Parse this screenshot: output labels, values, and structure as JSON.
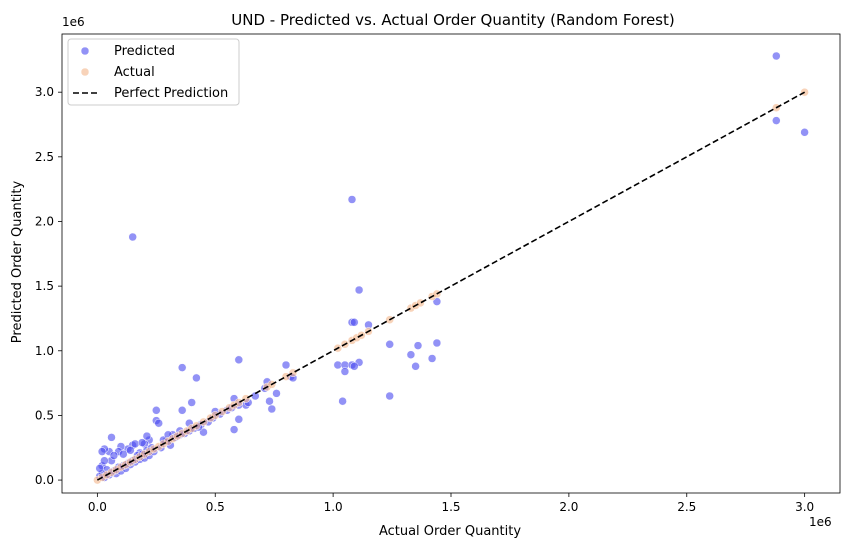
{
  "chart_data": {
    "type": "scatter",
    "title": "UND - Predicted vs. Actual Order Quantity (Random Forest)",
    "xlabel": "Actual Order Quantity",
    "ylabel": "Predicted Order Quantity",
    "x_offset_label": "1e6",
    "y_offset_label": "1e6",
    "xlim": [
      -0.15,
      3.15
    ],
    "ylim": [
      -0.1,
      3.45
    ],
    "xticks": [
      {
        "value": 0.0,
        "label": "0.0"
      },
      {
        "value": 0.5,
        "label": "0.5"
      },
      {
        "value": 1.0,
        "label": "1.0"
      },
      {
        "value": 1.5,
        "label": "1.5"
      },
      {
        "value": 2.0,
        "label": "2.0"
      },
      {
        "value": 2.5,
        "label": "2.5"
      },
      {
        "value": 3.0,
        "label": "3.0"
      }
    ],
    "yticks": [
      {
        "value": 0.0,
        "label": "0.0"
      },
      {
        "value": 0.5,
        "label": "0.5"
      },
      {
        "value": 1.0,
        "label": "1.0"
      },
      {
        "value": 1.5,
        "label": "1.5"
      },
      {
        "value": 2.0,
        "label": "2.0"
      },
      {
        "value": 2.5,
        "label": "2.5"
      },
      {
        "value": 3.0,
        "label": "3.0"
      }
    ],
    "grid": false,
    "legend_position": "top-left",
    "series": [
      {
        "name": "Predicted",
        "kind": "scatter",
        "color": "#4a4af0",
        "points": [
          [
            0.15,
            1.88
          ],
          [
            1.08,
            2.17
          ],
          [
            2.88,
            3.28
          ],
          [
            2.88,
            2.78
          ],
          [
            3.0,
            2.69
          ],
          [
            1.11,
            1.47
          ],
          [
            1.08,
            1.22
          ],
          [
            1.09,
            1.22
          ],
          [
            1.15,
            1.2
          ],
          [
            1.44,
            1.38
          ],
          [
            1.44,
            1.06
          ],
          [
            1.33,
            0.97
          ],
          [
            1.36,
            1.04
          ],
          [
            1.35,
            0.88
          ],
          [
            1.42,
            0.94
          ],
          [
            1.24,
            1.05
          ],
          [
            1.24,
            0.65
          ],
          [
            1.04,
            0.61
          ],
          [
            1.11,
            0.91
          ],
          [
            1.02,
            0.89
          ],
          [
            1.05,
            0.89
          ],
          [
            1.08,
            0.89
          ],
          [
            1.09,
            0.88
          ],
          [
            1.05,
            0.84
          ],
          [
            0.36,
            0.87
          ],
          [
            0.6,
            0.93
          ],
          [
            0.42,
            0.79
          ],
          [
            0.8,
            0.89
          ],
          [
            0.82,
            0.8
          ],
          [
            0.83,
            0.79
          ],
          [
            0.72,
            0.76
          ],
          [
            0.71,
            0.71
          ],
          [
            0.73,
            0.61
          ],
          [
            0.74,
            0.55
          ],
          [
            0.76,
            0.67
          ],
          [
            0.63,
            0.58
          ],
          [
            0.58,
            0.63
          ],
          [
            0.58,
            0.39
          ],
          [
            0.6,
            0.47
          ],
          [
            0.5,
            0.53
          ],
          [
            0.45,
            0.37
          ],
          [
            0.44,
            0.43
          ],
          [
            0.4,
            0.6
          ],
          [
            0.39,
            0.44
          ],
          [
            0.36,
            0.54
          ],
          [
            0.35,
            0.38
          ],
          [
            0.32,
            0.35
          ],
          [
            0.3,
            0.3
          ],
          [
            0.25,
            0.54
          ],
          [
            0.25,
            0.46
          ],
          [
            0.26,
            0.44
          ],
          [
            0.22,
            0.31
          ],
          [
            0.2,
            0.28
          ],
          [
            0.18,
            0.21
          ],
          [
            0.15,
            0.27
          ],
          [
            0.13,
            0.24
          ],
          [
            0.1,
            0.26
          ],
          [
            0.09,
            0.22
          ],
          [
            0.06,
            0.33
          ],
          [
            0.05,
            0.22
          ],
          [
            0.03,
            0.24
          ],
          [
            0.02,
            0.22
          ],
          [
            0.02,
            0.11
          ],
          [
            0.04,
            0.08
          ],
          [
            0.06,
            0.15
          ],
          [
            0.08,
            0.05
          ],
          [
            0.1,
            0.07
          ],
          [
            0.12,
            0.09
          ],
          [
            0.14,
            0.12
          ],
          [
            0.16,
            0.14
          ],
          [
            0.18,
            0.16
          ],
          [
            0.2,
            0.17
          ],
          [
            0.22,
            0.19
          ],
          [
            0.24,
            0.22
          ],
          [
            0.27,
            0.25
          ],
          [
            0.29,
            0.3
          ],
          [
            0.31,
            0.27
          ],
          [
            0.33,
            0.33
          ],
          [
            0.35,
            0.35
          ],
          [
            0.37,
            0.36
          ],
          [
            0.39,
            0.38
          ],
          [
            0.41,
            0.4
          ],
          [
            0.43,
            0.41
          ],
          [
            0.47,
            0.45
          ],
          [
            0.49,
            0.48
          ],
          [
            0.52,
            0.51
          ],
          [
            0.55,
            0.54
          ],
          [
            0.57,
            0.56
          ],
          [
            0.6,
            0.58
          ],
          [
            0.64,
            0.6
          ],
          [
            0.67,
            0.65
          ],
          [
            0.01,
            0.03
          ],
          [
            0.02,
            0.05
          ],
          [
            0.03,
            0.02
          ],
          [
            0.05,
            0.04
          ],
          [
            0.07,
            0.07
          ],
          [
            0.09,
            0.1
          ],
          [
            0.11,
            0.11
          ],
          [
            0.13,
            0.13
          ],
          [
            0.15,
            0.15
          ],
          [
            0.17,
            0.19
          ],
          [
            0.19,
            0.2
          ],
          [
            0.21,
            0.23
          ],
          [
            0.23,
            0.25
          ],
          [
            0.01,
            0.09
          ],
          [
            0.03,
            0.15
          ],
          [
            0.07,
            0.19
          ],
          [
            0.11,
            0.2
          ],
          [
            0.14,
            0.23
          ],
          [
            0.16,
            0.28
          ],
          [
            0.19,
            0.29
          ],
          [
            0.21,
            0.34
          ],
          [
            0.28,
            0.31
          ],
          [
            0.3,
            0.35
          ]
        ]
      },
      {
        "name": "Actual",
        "kind": "scatter",
        "color": "#f4b58a",
        "points": [
          [
            0.0,
            0.0
          ],
          [
            0.02,
            0.02
          ],
          [
            0.04,
            0.04
          ],
          [
            0.06,
            0.06
          ],
          [
            0.08,
            0.08
          ],
          [
            0.1,
            0.1
          ],
          [
            0.12,
            0.12
          ],
          [
            0.14,
            0.14
          ],
          [
            0.16,
            0.16
          ],
          [
            0.18,
            0.18
          ],
          [
            0.2,
            0.2
          ],
          [
            0.22,
            0.22
          ],
          [
            0.24,
            0.24
          ],
          [
            0.26,
            0.26
          ],
          [
            0.28,
            0.28
          ],
          [
            0.3,
            0.3
          ],
          [
            0.32,
            0.32
          ],
          [
            0.34,
            0.34
          ],
          [
            0.36,
            0.36
          ],
          [
            0.38,
            0.38
          ],
          [
            0.4,
            0.4
          ],
          [
            0.42,
            0.42
          ],
          [
            0.45,
            0.45
          ],
          [
            0.48,
            0.48
          ],
          [
            0.5,
            0.5
          ],
          [
            0.53,
            0.53
          ],
          [
            0.56,
            0.56
          ],
          [
            0.58,
            0.58
          ],
          [
            0.6,
            0.6
          ],
          [
            0.63,
            0.63
          ],
          [
            0.72,
            0.72
          ],
          [
            0.74,
            0.74
          ],
          [
            0.8,
            0.8
          ],
          [
            0.83,
            0.83
          ],
          [
            1.02,
            1.02
          ],
          [
            1.05,
            1.05
          ],
          [
            1.08,
            1.08
          ],
          [
            1.1,
            1.1
          ],
          [
            1.12,
            1.12
          ],
          [
            1.15,
            1.15
          ],
          [
            1.24,
            1.24
          ],
          [
            1.33,
            1.33
          ],
          [
            1.35,
            1.35
          ],
          [
            1.37,
            1.37
          ],
          [
            1.42,
            1.42
          ],
          [
            1.44,
            1.44
          ],
          [
            2.88,
            2.88
          ],
          [
            3.0,
            3.0
          ]
        ]
      },
      {
        "name": "Perfect Prediction",
        "kind": "line",
        "color": "#000000",
        "dash": true,
        "x": [
          0.0,
          3.0
        ],
        "y": [
          0.0,
          3.0
        ]
      }
    ]
  }
}
